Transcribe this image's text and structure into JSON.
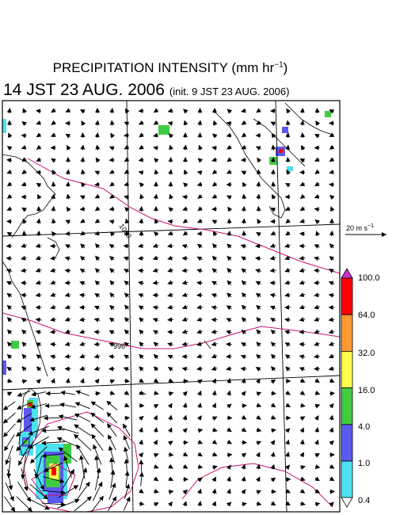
{
  "title": {
    "prefix": "PRECIPITATION INTENSITY (mm hr",
    "sup": "−1",
    "suffix": ")"
  },
  "subtitle": {
    "main": "14 JST 23 AUG. 2006",
    "init": "(init. 9 JST 23 AUG. 2006)"
  },
  "vector_reference": {
    "prefix": "20 m s",
    "sup": "−1"
  },
  "colorbar": {
    "levels": [
      {
        "label": "100.0",
        "color": "#ff0000"
      },
      {
        "label": "64.0",
        "color": "#ff9933"
      },
      {
        "label": "32.0",
        "color": "#ffff4d"
      },
      {
        "label": "16.0",
        "color": "#40cc40"
      },
      {
        "label": "4.0",
        "color": "#5a5af0"
      },
      {
        "label": "1.0",
        "color": "#4de0f0"
      },
      {
        "label": "0.4",
        "color": "#ffffff"
      }
    ],
    "over_color": "#cc33cc"
  },
  "isobar_labels": [
    "1000",
    "996"
  ],
  "colors": {
    "isobar": "#cc1177",
    "grid": "#aaaaaa",
    "coast": "#000000",
    "vector": "#000000"
  }
}
